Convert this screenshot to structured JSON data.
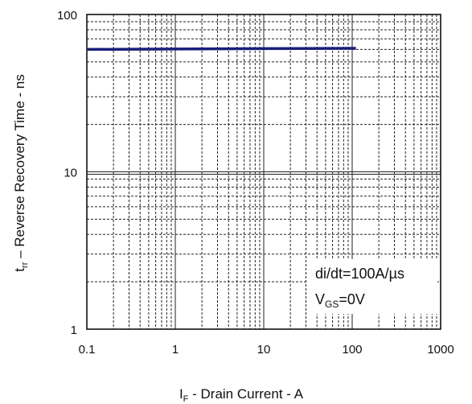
{
  "chart_data": {
    "type": "line",
    "xscale": "log",
    "yscale": "log",
    "xlim": [
      0.1,
      1000
    ],
    "ylim": [
      1,
      100
    ],
    "grid": true,
    "x_ticks": [
      "0.1",
      "1",
      "10",
      "100",
      "1000"
    ],
    "y_ticks": [
      "1",
      "10",
      "100"
    ],
    "xlabel": {
      "main": "I",
      "sub": "F",
      "rest": " - Drain Current  - A"
    },
    "ylabel": {
      "main": "t",
      "sub": "rr",
      "rest": " – Reverse Recovery Time - ns"
    },
    "series": [
      {
        "color": "#1a1f7a",
        "x": [
          0.1,
          1,
          10,
          110
        ],
        "y": [
          60,
          60.3,
          60.7,
          61
        ]
      }
    ],
    "annotation": {
      "line1": "di/dt=100A/µs",
      "line2": {
        "main": "V",
        "sub": "GS",
        "rest": "=0V"
      }
    }
  }
}
